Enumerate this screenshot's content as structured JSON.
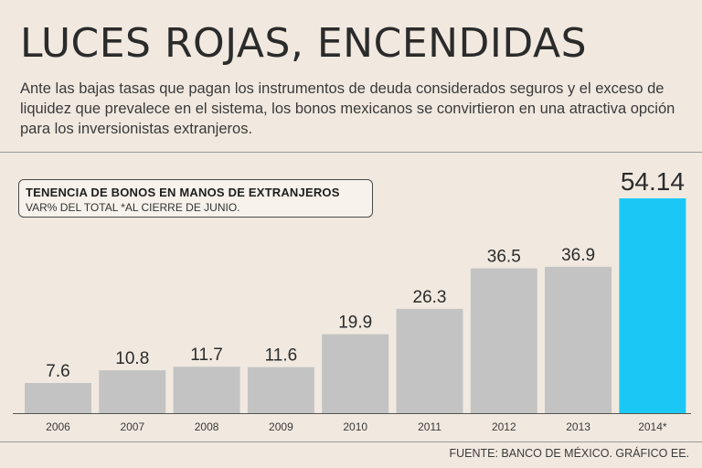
{
  "header": {
    "title": "LUCES ROJAS, ENCENDIDAS",
    "subtitle": "Ante las bajas tasas que pagan los instrumentos de deuda considerados seguros y el exceso de liquidez que prevalece en el sistema, los bonos mexicanos se convirtieron en una atractiva opción para los inversionistas extranjeros."
  },
  "legend": {
    "title": "TENENCIA DE BONOS EN MANOS DE EXTRANJEROS",
    "subtitle": "VAR% DEL TOTAL *AL CIERRE DE JUNIO."
  },
  "footer": {
    "source": "FUENTE: BANCO DE MÉXICO. GRÁFICO EE."
  },
  "chart_data": {
    "type": "bar",
    "title": "TENENCIA DE BONOS EN MANOS DE EXTRANJEROS",
    "ylabel": "VAR% DEL TOTAL",
    "categories": [
      "2006",
      "2007",
      "2008",
      "2009",
      "2010",
      "2011",
      "2012",
      "2013",
      "2014*"
    ],
    "values": [
      7.6,
      10.8,
      11.7,
      11.6,
      19.9,
      26.3,
      36.5,
      36.9,
      54.14
    ],
    "labels": [
      "7.6",
      "10.8",
      "11.7",
      "11.6",
      "19.9",
      "26.3",
      "36.5",
      "36.9",
      "54.14"
    ],
    "highlight_index": 8,
    "colors": {
      "bar": "#c3c3c3",
      "highlight": "#1bc8f5",
      "axis": "#555555"
    },
    "ylim": [
      0,
      54.14
    ],
    "grid": false
  }
}
